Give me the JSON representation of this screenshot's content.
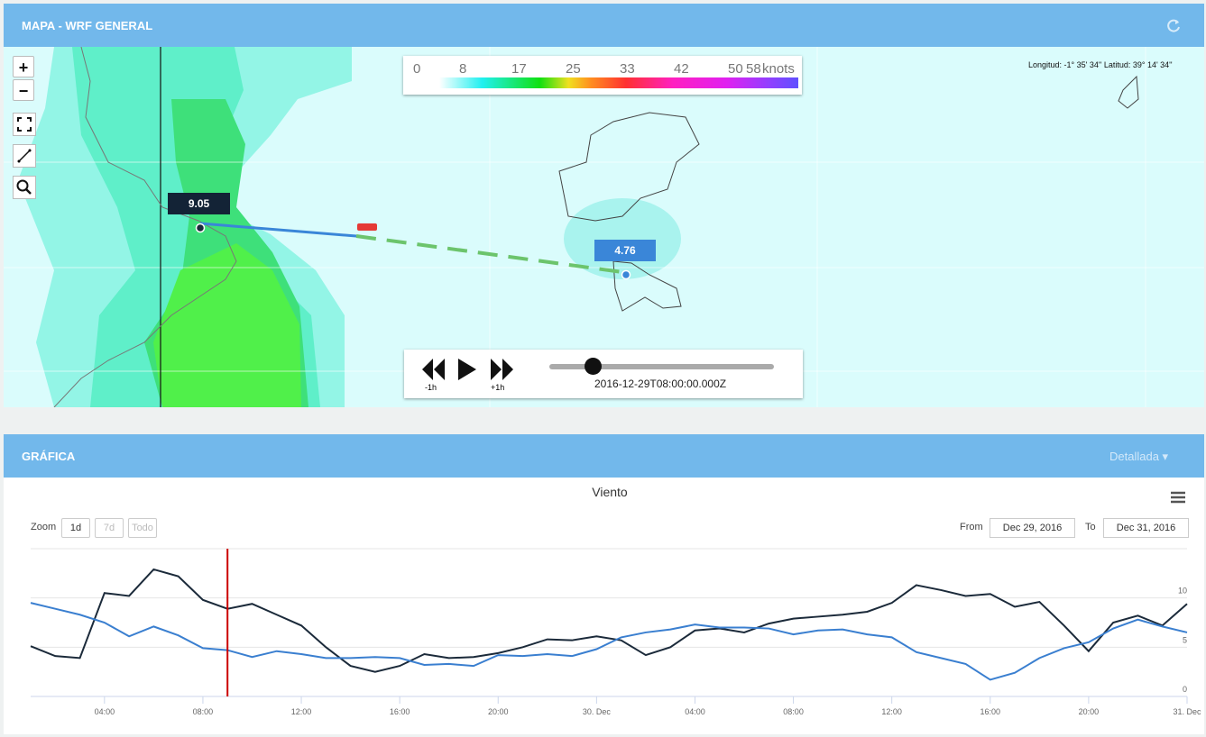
{
  "map_panel": {
    "title": "MAPA - WRF GENERAL",
    "zoom_in": "+",
    "zoom_out": "−",
    "colorbar": {
      "labels": [
        "0",
        "8",
        "17",
        "25",
        "33",
        "42",
        "50",
        "58"
      ],
      "unit": "knots"
    },
    "coordinates": "Longitud: -1° 35' 34'' Latitud: 39° 14' 34''",
    "start_label": "9.05",
    "end_label": "4.76",
    "player": {
      "back": "-1h",
      "forward": "+1h",
      "time": "2016-12-29T08:00:00.000Z"
    }
  },
  "chart_panel": {
    "title": "GRÁFICA",
    "view": "Detallada",
    "zoom": {
      "label": "Zoom",
      "buttons": [
        "1d",
        "7d",
        "Todo"
      ]
    },
    "from": {
      "label": "From",
      "value": "Dec 29, 2016"
    },
    "to": {
      "label": "To",
      "value": "Dec 31, 2016"
    }
  },
  "chart_data": {
    "type": "line",
    "title": "Viento",
    "x": [
      1,
      2,
      3,
      4,
      5,
      6,
      7,
      8,
      9,
      10,
      11,
      12,
      13,
      14,
      15,
      16,
      17,
      18,
      19,
      20,
      21,
      22,
      23,
      24,
      25,
      26,
      27,
      28,
      29,
      30,
      31,
      32,
      33,
      34,
      35,
      36,
      37,
      38,
      39,
      40,
      41,
      42,
      43,
      44,
      45,
      46,
      47,
      48
    ],
    "xlim": [
      1,
      48
    ],
    "xticks": [
      {
        "value": 4,
        "label": "04:00"
      },
      {
        "value": 8,
        "label": "08:00"
      },
      {
        "value": 12,
        "label": "12:00"
      },
      {
        "value": 16,
        "label": "16:00"
      },
      {
        "value": 20,
        "label": "20:00"
      },
      {
        "value": 24,
        "label": "30. Dec"
      },
      {
        "value": 28,
        "label": "04:00"
      },
      {
        "value": 32,
        "label": "08:00"
      },
      {
        "value": 36,
        "label": "12:00"
      },
      {
        "value": 40,
        "label": "16:00"
      },
      {
        "value": 44,
        "label": "20:00"
      },
      {
        "value": 48,
        "label": "31. Dec"
      }
    ],
    "ylim": [
      0,
      15
    ],
    "yticks": [
      0,
      5,
      10
    ],
    "grid": true,
    "current_x": 9,
    "current_color": "#cc0000",
    "series": [
      {
        "color": "#1b2a3a",
        "values": [
          5.1,
          4.1,
          3.9,
          10.5,
          10.2,
          12.9,
          12.2,
          9.8,
          8.9,
          9.4,
          8.3,
          7.2,
          5.0,
          3.1,
          2.5,
          3.1,
          4.3,
          3.9,
          4.0,
          4.4,
          5.0,
          5.8,
          5.7,
          6.1,
          5.7,
          4.2,
          5.0,
          6.7,
          6.9,
          6.5,
          7.4,
          7.9,
          8.1,
          8.3,
          8.6,
          9.5,
          11.3,
          10.8,
          10.2,
          10.4,
          9.1,
          9.6,
          7.2,
          4.6,
          7.5,
          8.2,
          7.2,
          9.4
        ]
      },
      {
        "color": "#3a7fd0",
        "values": [
          9.5,
          8.9,
          8.3,
          7.5,
          6.1,
          7.1,
          6.2,
          4.9,
          4.7,
          4.0,
          4.6,
          4.3,
          3.9,
          3.9,
          4.0,
          3.9,
          3.2,
          3.3,
          3.1,
          4.2,
          4.1,
          4.3,
          4.1,
          4.8,
          6.0,
          6.5,
          6.8,
          7.3,
          7.0,
          7.0,
          6.9,
          6.3,
          6.7,
          6.8,
          6.3,
          6.0,
          4.5,
          3.9,
          3.3,
          1.7,
          2.4,
          3.9,
          4.9,
          5.5,
          6.9,
          7.8,
          7.1,
          6.5
        ]
      }
    ]
  }
}
